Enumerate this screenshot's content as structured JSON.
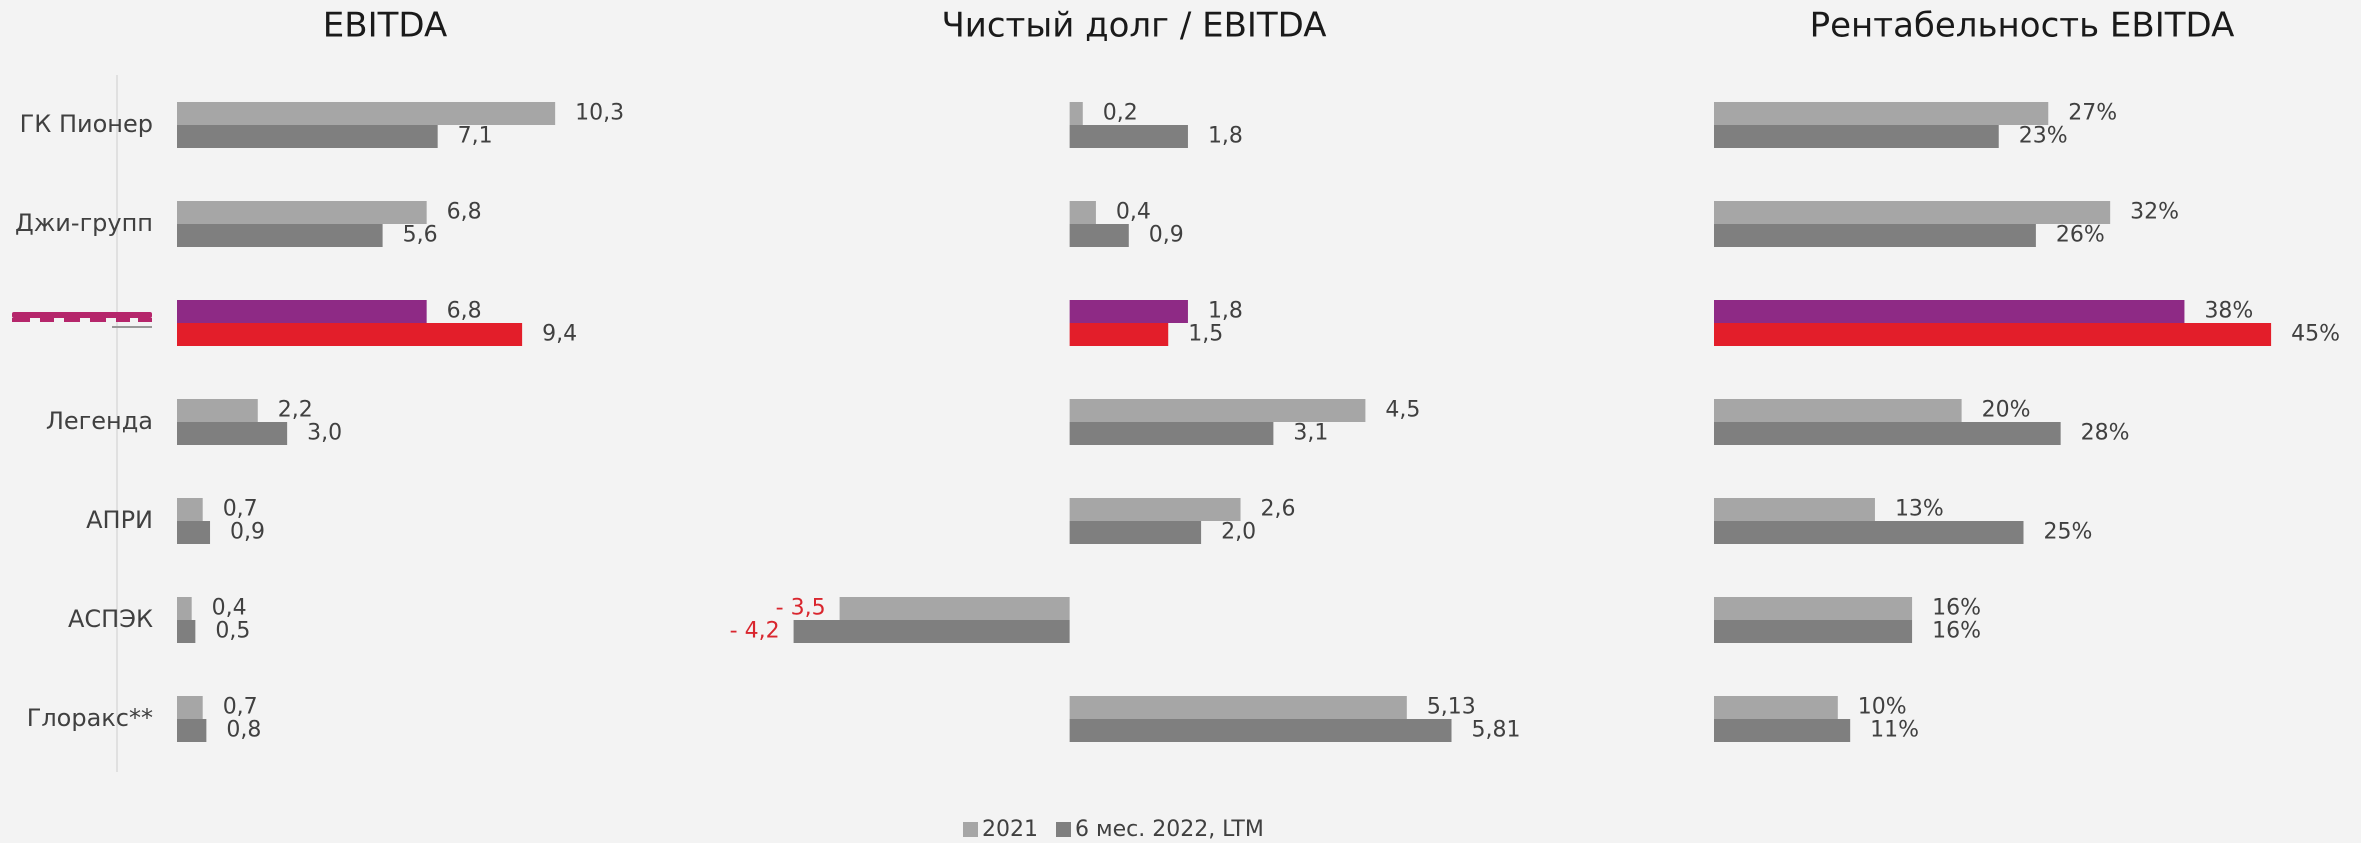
{
  "chart_data": [
    {
      "type": "bar",
      "orientation": "horizontal",
      "title": "EBITDA",
      "categories": [
        "ГК Пионер",
        "Джи-групп",
        null,
        "Легенда",
        "АПРИ",
        "АСПЭК",
        "Глоракс**"
      ],
      "xlim": [
        0,
        14
      ],
      "series": [
        {
          "name": "2021",
          "color": "#a6a6a6",
          "colors": [
            "#a6a6a6",
            "#a6a6a6",
            "#8e2a85",
            "#a6a6a6",
            "#a6a6a6",
            "#a6a6a6",
            "#a6a6a6"
          ],
          "values": [
            10.3,
            6.8,
            6.8,
            2.2,
            0.7,
            0.4,
            0.7
          ],
          "value_labels": [
            "10,3",
            "6,8",
            "6,8",
            "2,2",
            "0,7",
            "0,4",
            "0,7"
          ]
        },
        {
          "name": "6 мес. 2022, LTM",
          "color": "#7f7f7f",
          "colors": [
            "#7f7f7f",
            "#7f7f7f",
            "#e31e2a",
            "#7f7f7f",
            "#7f7f7f",
            "#7f7f7f",
            "#7f7f7f"
          ],
          "values": [
            7.1,
            5.6,
            9.4,
            3.0,
            0.9,
            0.5,
            0.8
          ],
          "value_labels": [
            "7,1",
            "5,6",
            "9,4",
            "3,0",
            "0,9",
            "0,5",
            "0,8"
          ]
        }
      ]
    },
    {
      "type": "bar",
      "orientation": "horizontal",
      "title": "Чистый долг / EBITDA",
      "xlim": [
        -5,
        6
      ],
      "negative_label_color": "#d9262e",
      "series": [
        {
          "colors": [
            "#a6a6a6",
            "#a6a6a6",
            "#8e2a85",
            "#a6a6a6",
            "#a6a6a6",
            "#a6a6a6",
            "#a6a6a6"
          ],
          "values": [
            0.2,
            0.4,
            1.8,
            4.5,
            2.6,
            -3.5,
            5.13
          ],
          "value_labels": [
            "0,2",
            "0,4",
            "1,8",
            "4,5",
            "2,6",
            "- 3,5",
            "5,13"
          ]
        },
        {
          "colors": [
            "#7f7f7f",
            "#7f7f7f",
            "#e31e2a",
            "#7f7f7f",
            "#7f7f7f",
            "#7f7f7f",
            "#7f7f7f"
          ],
          "values": [
            1.8,
            0.9,
            1.5,
            3.1,
            2.0,
            -4.2,
            5.81
          ],
          "value_labels": [
            "1,8",
            "0,9",
            "1,5",
            "3,1",
            "2,0",
            "- 4,2",
            "5,81"
          ]
        }
      ]
    },
    {
      "type": "bar",
      "orientation": "horizontal",
      "title": "Рентабельность EBITDA",
      "xlim": [
        0,
        50
      ],
      "series": [
        {
          "colors": [
            "#a6a6a6",
            "#a6a6a6",
            "#8e2a85",
            "#a6a6a6",
            "#a6a6a6",
            "#a6a6a6",
            "#a6a6a6"
          ],
          "values": [
            27,
            32,
            38,
            20,
            13,
            16,
            10
          ],
          "value_labels": [
            "27%",
            "32%",
            "38%",
            "20%",
            "13%",
            "16%",
            "10%"
          ]
        },
        {
          "colors": [
            "#7f7f7f",
            "#7f7f7f",
            "#e31e2a",
            "#7f7f7f",
            "#7f7f7f",
            "#7f7f7f",
            "#7f7f7f"
          ],
          "values": [
            23,
            26,
            45,
            28,
            25,
            16,
            11
          ],
          "value_labels": [
            "23%",
            "26%",
            "45%",
            "28%",
            "25%",
            "16%",
            "11%"
          ]
        }
      ]
    }
  ]
}
